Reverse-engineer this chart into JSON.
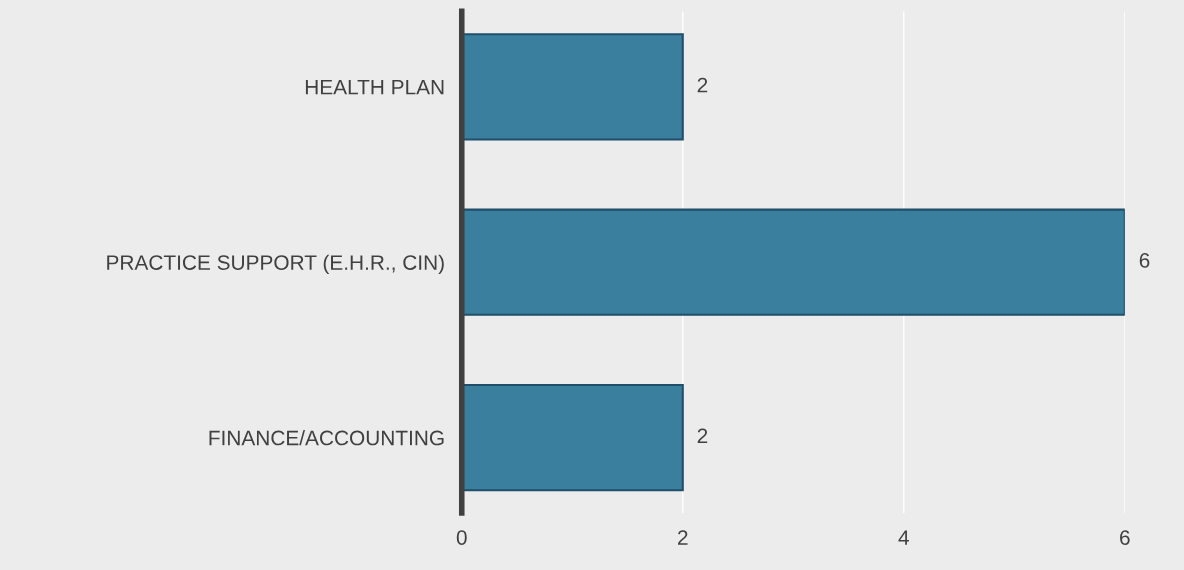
{
  "chart_data": {
    "type": "bar",
    "orientation": "horizontal",
    "categories": [
      "HEALTH PLAN",
      "PRACTICE SUPPORT (E.H.R., CIN)",
      "FINANCE/ACCOUNTING"
    ],
    "values": [
      2,
      6,
      2
    ],
    "color": "#3a7f9e",
    "xlim": [
      0,
      6
    ],
    "xticks": [
      0,
      2,
      4,
      6
    ],
    "grid": "x",
    "data_labels": true
  }
}
